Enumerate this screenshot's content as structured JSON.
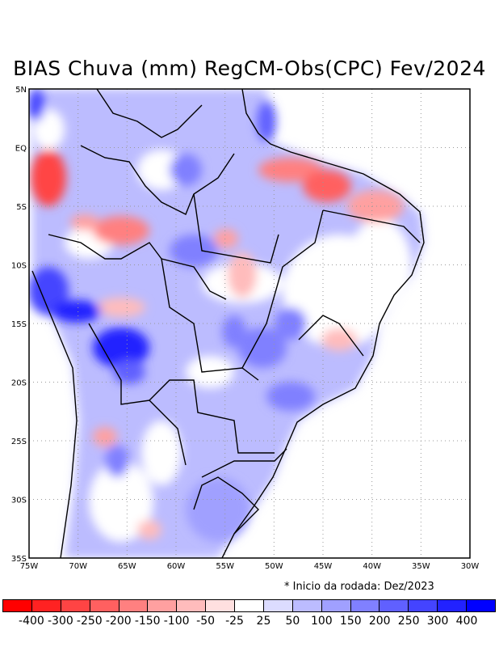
{
  "title": "BIAS Chuva (mm) RegCM-Obs(CPC) Fev/2024",
  "note": "* Inicio da rodada: Dez/2023",
  "lat_labels": [
    "5N",
    "EQ",
    "5S",
    "10S",
    "15S",
    "20S",
    "25S",
    "30S",
    "35S"
  ],
  "lon_labels": [
    "75W",
    "70W",
    "65W",
    "60W",
    "55W",
    "50W",
    "45W",
    "40W",
    "35W",
    "30W"
  ],
  "colorbar": {
    "labels": [
      "-400",
      "-300",
      "-250",
      "-200",
      "-150",
      "-100",
      "-50",
      "-25",
      "25",
      "50",
      "100",
      "150",
      "200",
      "250",
      "300",
      "400"
    ],
    "colors": [
      "#ff0000",
      "#ff2222",
      "#ff4444",
      "#ff6060",
      "#ff8080",
      "#ffa0a0",
      "#ffbcbc",
      "#ffe0e0",
      "#ffffff",
      "#dcdcff",
      "#bcbcff",
      "#a0a0ff",
      "#8080ff",
      "#6060ff",
      "#4444ff",
      "#2222ff",
      "#0000ff"
    ]
  }
}
